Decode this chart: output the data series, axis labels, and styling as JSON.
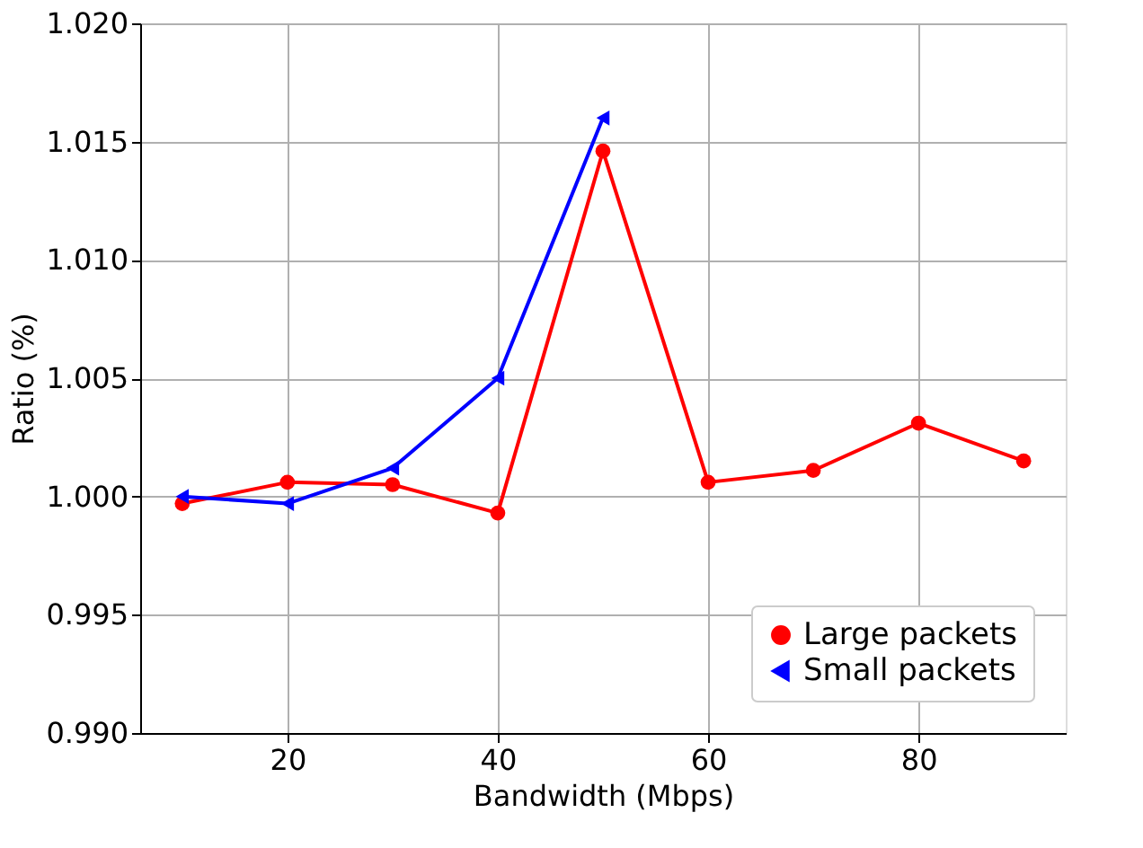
{
  "chart_data": {
    "type": "line",
    "xlabel": "Bandwidth (Mbps)",
    "ylabel": "Ratio (%)",
    "x": [
      10,
      20,
      30,
      40,
      50,
      60,
      70,
      80,
      90
    ],
    "series": [
      {
        "name": "Large packets",
        "color": "#ff0000",
        "marker": "circle",
        "values": [
          0.9997,
          1.0006,
          1.0005,
          0.9993,
          1.0146,
          1.0006,
          1.0011,
          1.0031,
          1.0015
        ]
      },
      {
        "name": "Small packets",
        "color": "#0000ff",
        "marker": "triangle-left",
        "x": [
          10,
          20,
          30,
          40,
          50
        ],
        "values": [
          1.0,
          0.9997,
          1.0012,
          1.005,
          1.016
        ]
      }
    ],
    "xlim": [
      6,
      94
    ],
    "xticks": [
      20,
      40,
      60,
      80
    ],
    "ylim": [
      0.99,
      1.02
    ],
    "yticks": [
      {
        "value": 0.99,
        "label": "0.990"
      },
      {
        "value": 0.995,
        "label": "0.995"
      },
      {
        "value": 1.0,
        "label": "1.000"
      },
      {
        "value": 1.005,
        "label": "1.005"
      },
      {
        "value": 1.01,
        "label": "1.010"
      },
      {
        "value": 1.015,
        "label": "1.015"
      },
      {
        "value": 1.02,
        "label": "1.020"
      }
    ],
    "grid": true,
    "legend": "bottom right",
    "line_style": "solid"
  }
}
